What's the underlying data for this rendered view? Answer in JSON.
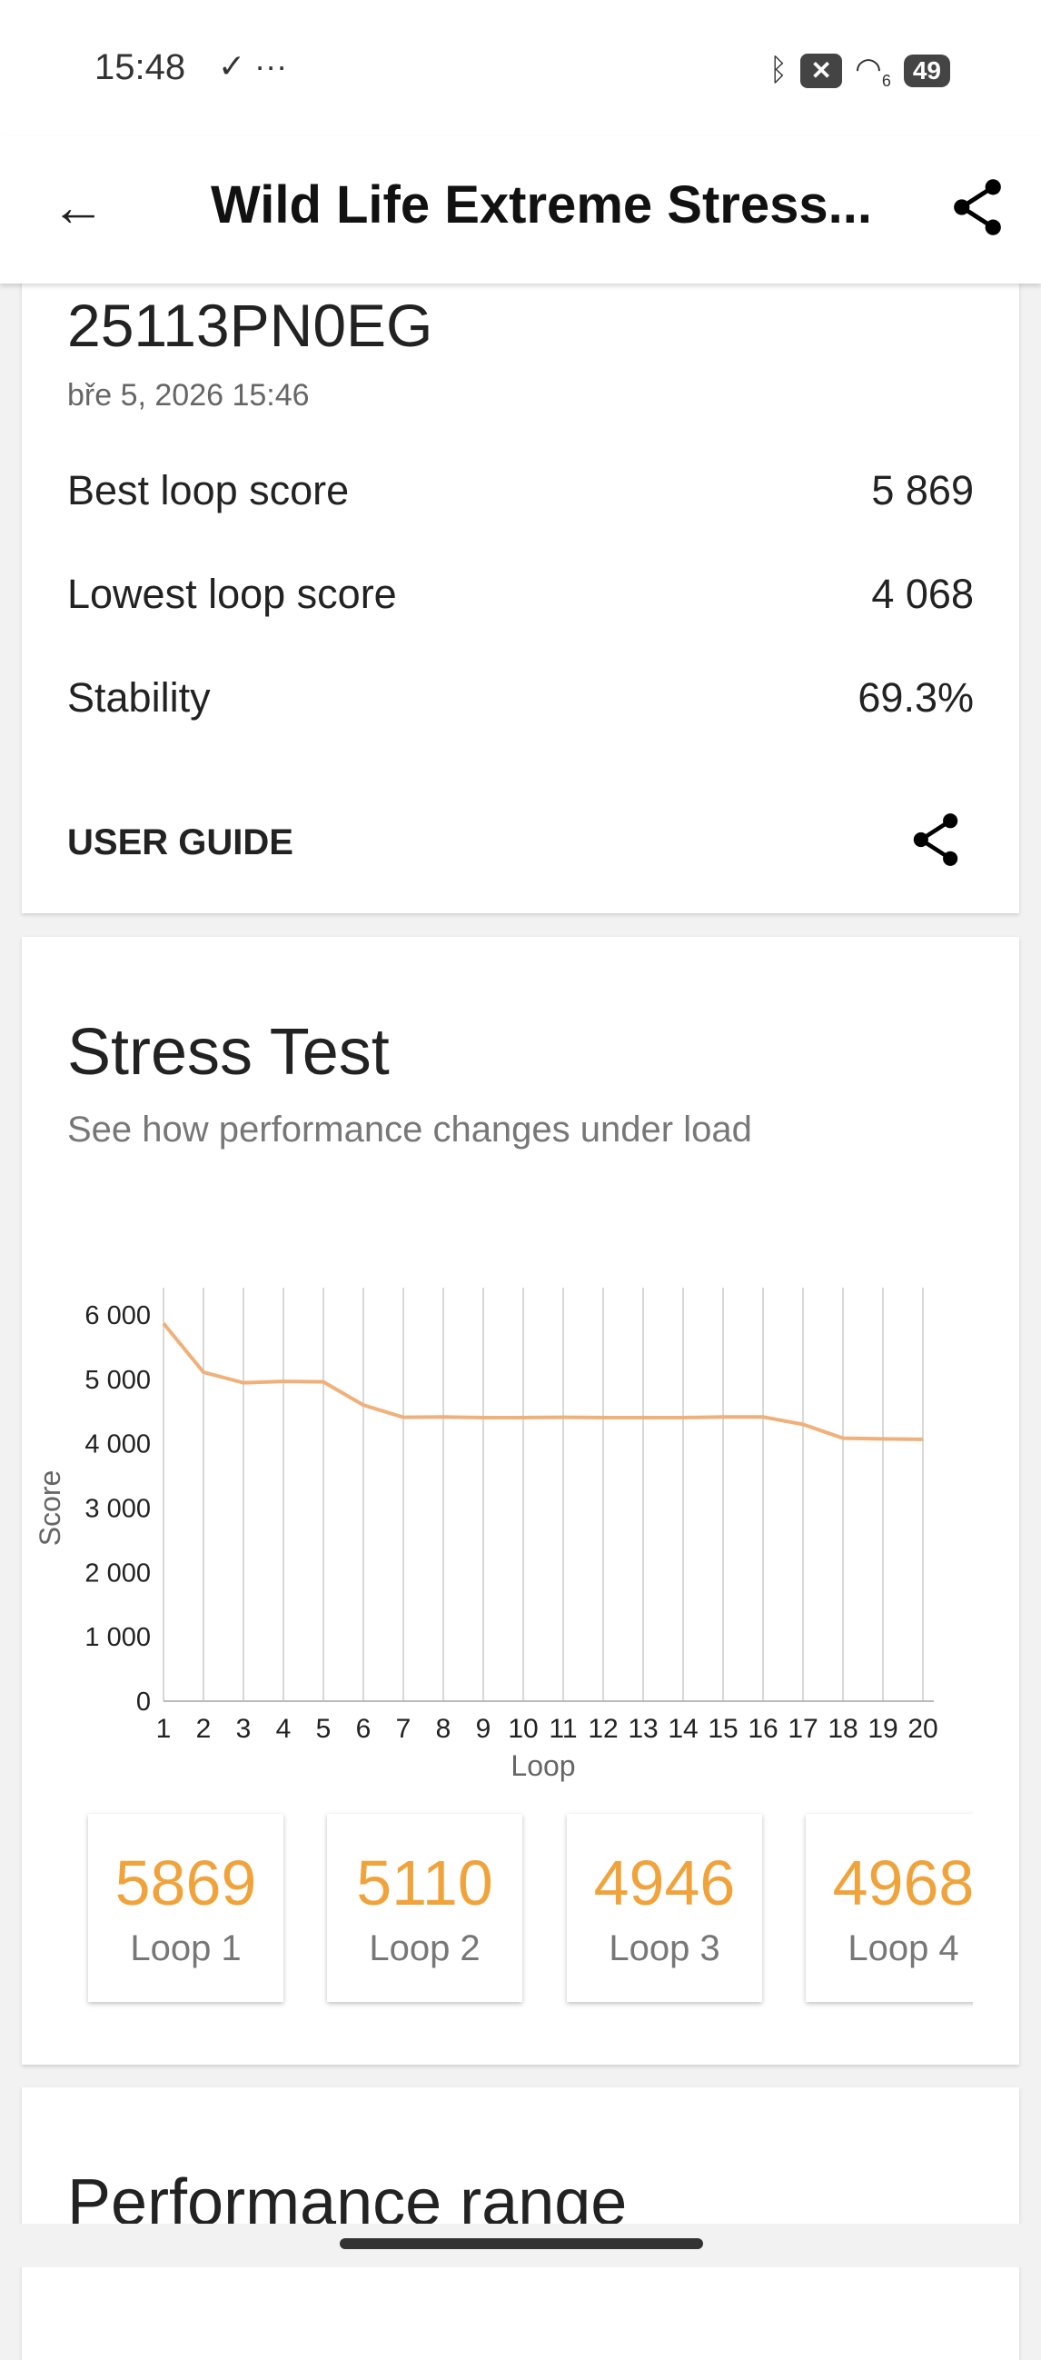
{
  "status_bar": {
    "time": "15:48",
    "notif_icons": "✓ ···",
    "battery": "49",
    "wifi_label": "6"
  },
  "app_bar": {
    "title": "Wild Life Extreme Stress..."
  },
  "summary": {
    "device": "25113PN0EG",
    "date": "bře 5, 2026 15:46",
    "rows": [
      {
        "label": "Best loop score",
        "value": "5 869"
      },
      {
        "label": "Lowest loop score",
        "value": "4 068"
      },
      {
        "label": "Stability",
        "value": "69.3%"
      }
    ],
    "user_guide": "USER GUIDE"
  },
  "stress": {
    "title": "Stress Test",
    "subtitle": "See how performance changes under load",
    "tiles": [
      {
        "value": "5869",
        "label": "Loop 1"
      },
      {
        "value": "5110",
        "label": "Loop 2"
      },
      {
        "value": "4946",
        "label": "Loop 3"
      },
      {
        "value": "4968",
        "label": "Loop 4"
      }
    ]
  },
  "chart_data": {
    "type": "line",
    "xlabel": "Loop",
    "ylabel": "Score",
    "ylim": [
      0,
      6000
    ],
    "yticks": [
      "0",
      "1 000",
      "2 000",
      "3 000",
      "4 000",
      "5 000",
      "6 000"
    ],
    "x": [
      1,
      2,
      3,
      4,
      5,
      6,
      7,
      8,
      9,
      10,
      11,
      12,
      13,
      14,
      15,
      16,
      17,
      18,
      19,
      20
    ],
    "values": [
      5869,
      5110,
      4946,
      4968,
      4960,
      4600,
      4410,
      4415,
      4405,
      4405,
      4410,
      4405,
      4405,
      4405,
      4415,
      4415,
      4300,
      4085,
      4075,
      4068
    ],
    "color": "#f0b07a",
    "grid": "vertical"
  },
  "range": {
    "title": "Performance range"
  }
}
